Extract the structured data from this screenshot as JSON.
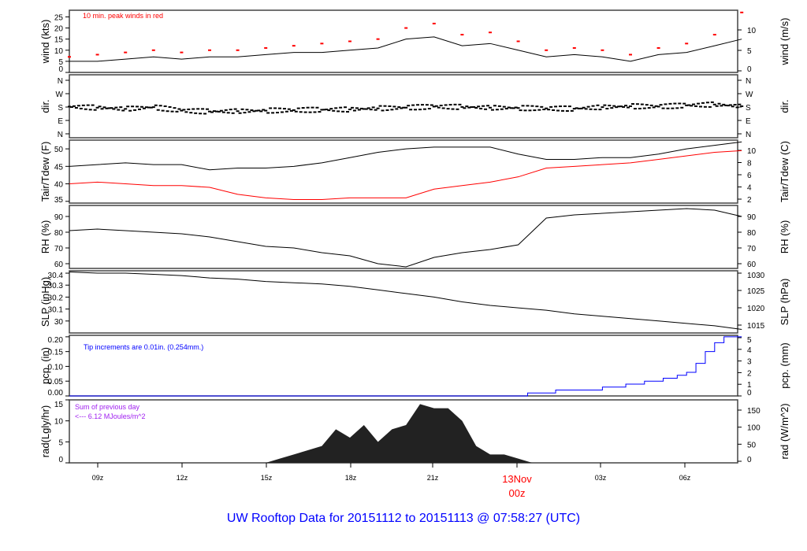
{
  "title": "UW Rooftop Data for 20151112  to  20151113 @ 07:58:27  (UTC)",
  "x_ticks": [
    "09z",
    "12z",
    "15z",
    "18z",
    "21z",
    "03z",
    "06z"
  ],
  "midnight_label": [
    "13Nov",
    "00z"
  ],
  "colors": {
    "line": "#000000",
    "peak": "#ff0000",
    "dew": "#ff0000",
    "pcp": "#0000ff",
    "rad": "#222222",
    "title": "#0000ff",
    "rad_note": "#a020f0"
  },
  "chart_data": [
    {
      "type": "line",
      "id": "wind",
      "ylabel": "wind (kts)",
      "ylabel_right": "wind (m/s)",
      "ylim": [
        0,
        28
      ],
      "yticks": [
        0,
        5,
        10,
        15,
        20,
        25
      ],
      "yticks_right": [
        0,
        5,
        10
      ],
      "annotation": "10 min. peak winds in red",
      "x": [
        "11-12 08:00",
        "11-12 09:00",
        "11-12 10:00",
        "11-12 11:00",
        "11-12 12:00",
        "11-12 13:00",
        "11-12 14:00",
        "11-12 15:00",
        "11-12 16:00",
        "11-12 17:00",
        "11-12 18:00",
        "11-12 19:00",
        "11-12 20:00",
        "11-12 21:00",
        "11-12 22:00",
        "11-12 23:00",
        "11-13 00:00",
        "11-13 01:00",
        "11-13 02:00",
        "11-13 03:00",
        "11-13 04:00",
        "11-13 05:00",
        "11-13 06:00",
        "11-13 07:00",
        "11-13 07:58"
      ],
      "series": [
        {
          "values": [
            5,
            5,
            6,
            7,
            6,
            7,
            7,
            8,
            9,
            9,
            10,
            11,
            15,
            16,
            12,
            13,
            10,
            7,
            8,
            7,
            5,
            8,
            9,
            12,
            15
          ]
        },
        {
          "name": "10 min. peak winds",
          "values": [
            7,
            8,
            9,
            10,
            9,
            10,
            10,
            11,
            12,
            13,
            14,
            15,
            20,
            22,
            17,
            18,
            14,
            10,
            11,
            10,
            8,
            11,
            13,
            17,
            27
          ]
        }
      ]
    },
    {
      "type": "scatter",
      "id": "dir",
      "ylabel": "dir.",
      "ylabel_right": "dir.",
      "ylim": [
        0,
        360
      ],
      "yticks": [
        "N",
        "E",
        "S",
        "W",
        "N"
      ],
      "x": [
        "11-12 08:00",
        "11-12 09:00",
        "11-12 10:00",
        "11-12 11:00",
        "11-12 12:00",
        "11-12 13:00",
        "11-12 14:00",
        "11-12 15:00",
        "11-12 16:00",
        "11-12 17:00",
        "11-12 18:00",
        "11-12 19:00",
        "11-12 20:00",
        "11-12 21:00",
        "11-12 22:00",
        "11-12 23:00",
        "11-13 00:00",
        "11-13 01:00",
        "11-13 02:00",
        "11-13 03:00",
        "11-13 04:00",
        "11-13 05:00",
        "11-13 06:00",
        "11-13 07:00",
        "11-13 07:58"
      ],
      "series": [
        {
          "values": [
            178,
            172,
            165,
            175,
            155,
            150,
            152,
            155,
            158,
            160,
            162,
            168,
            172,
            178,
            176,
            172,
            170,
            168,
            166,
            175,
            180,
            178,
            185,
            190,
            180
          ]
        }
      ]
    },
    {
      "type": "line",
      "id": "temp",
      "ylabel": "Tair/Tdew (F)",
      "ylabel_right": "Tair/Tdew (C)",
      "ylim": [
        34.5,
        52.5
      ],
      "yticks": [
        35,
        40,
        45,
        50
      ],
      "yticks_right": [
        2,
        4,
        6,
        8,
        10
      ],
      "x": [
        "11-12 08:00",
        "11-12 09:00",
        "11-12 10:00",
        "11-12 11:00",
        "11-12 12:00",
        "11-12 13:00",
        "11-12 14:00",
        "11-12 15:00",
        "11-12 16:00",
        "11-12 17:00",
        "11-12 18:00",
        "11-12 19:00",
        "11-12 20:00",
        "11-12 21:00",
        "11-12 22:00",
        "11-12 23:00",
        "11-13 00:00",
        "11-13 01:00",
        "11-13 02:00",
        "11-13 03:00",
        "11-13 04:00",
        "11-13 05:00",
        "11-13 06:00",
        "11-13 07:00",
        "11-13 07:58"
      ],
      "series": [
        {
          "name": "Tair",
          "values": [
            45,
            45.5,
            46,
            45.5,
            45.5,
            44,
            44.5,
            44.5,
            45,
            46,
            47.5,
            49,
            50,
            50.5,
            50.5,
            50.5,
            48.5,
            47,
            47,
            47.5,
            47.5,
            48.5,
            50,
            51,
            52
          ]
        },
        {
          "name": "Tdew",
          "values": [
            40,
            40.5,
            40,
            39.5,
            39.5,
            39,
            37,
            36,
            35.5,
            35.5,
            36,
            36,
            36,
            38.5,
            39.5,
            40.5,
            42,
            44.5,
            45,
            45.5,
            46,
            47,
            48,
            49,
            49.5
          ]
        }
      ]
    },
    {
      "type": "line",
      "id": "rh",
      "ylabel": "RH (%)",
      "ylabel_right": "RH (%)",
      "ylim": [
        57,
        97
      ],
      "yticks": [
        60,
        70,
        80,
        90
      ],
      "yticks_right": [
        60,
        70,
        80,
        90
      ],
      "x": [
        "11-12 08:00",
        "11-12 09:00",
        "11-12 10:00",
        "11-12 11:00",
        "11-12 12:00",
        "11-12 13:00",
        "11-12 14:00",
        "11-12 15:00",
        "11-12 16:00",
        "11-12 17:00",
        "11-12 18:00",
        "11-12 19:00",
        "11-12 20:00",
        "11-12 21:00",
        "11-12 22:00",
        "11-12 23:00",
        "11-13 00:00",
        "11-13 01:00",
        "11-13 02:00",
        "11-13 03:00",
        "11-13 04:00",
        "11-13 05:00",
        "11-13 06:00",
        "11-13 07:00",
        "11-13 07:58"
      ],
      "series": [
        {
          "values": [
            81,
            82,
            81,
            80,
            79,
            77,
            74,
            71,
            70,
            67,
            65,
            60,
            58,
            64,
            67,
            69,
            72,
            89,
            91,
            92,
            93,
            94,
            95,
            94,
            90
          ]
        }
      ]
    },
    {
      "type": "line",
      "id": "slp",
      "ylabel": "SLP (inHg)",
      "ylabel_right": "SLP (hPa)",
      "ylim": [
        29.9,
        30.42
      ],
      "yticks": [
        30.0,
        30.1,
        30.2,
        30.3,
        30.4
      ],
      "yticks_right": [
        1015,
        1020,
        1025,
        1030
      ],
      "x": [
        "11-12 08:00",
        "11-12 09:00",
        "11-12 10:00",
        "11-12 11:00",
        "11-12 12:00",
        "11-12 13:00",
        "11-12 14:00",
        "11-12 15:00",
        "11-12 16:00",
        "11-12 17:00",
        "11-12 18:00",
        "11-12 19:00",
        "11-12 20:00",
        "11-12 21:00",
        "11-12 22:00",
        "11-12 23:00",
        "11-13 00:00",
        "11-13 01:00",
        "11-13 02:00",
        "11-13 03:00",
        "11-13 04:00",
        "11-13 05:00",
        "11-13 06:00",
        "11-13 07:00",
        "11-13 07:58"
      ],
      "series": [
        {
          "values": [
            30.41,
            30.4,
            30.4,
            30.39,
            30.38,
            30.36,
            30.35,
            30.33,
            30.32,
            30.31,
            30.29,
            30.26,
            30.23,
            30.2,
            30.16,
            30.13,
            30.11,
            30.09,
            30.06,
            30.04,
            30.02,
            30.0,
            29.98,
            29.96,
            29.93
          ]
        }
      ]
    },
    {
      "type": "line",
      "id": "pcp",
      "ylabel": "pcp. (in)",
      "ylabel_right": "pcp. (mm)",
      "ylim": [
        0,
        0.205
      ],
      "yticks": [
        "0.00",
        "0.05",
        "0.10",
        "0.15",
        "0.20"
      ],
      "yticks_right": [
        0,
        1,
        2,
        3,
        4,
        5
      ],
      "annotation": "Tip increments are 0.01in. (0.254mm.)",
      "x": [
        "11-12 08:00",
        "11-13 00:20",
        "11-13 01:20",
        "11-13 03:00",
        "11-13 03:50",
        "11-13 04:30",
        "11-13 05:10",
        "11-13 05:40",
        "11-13 06:00",
        "11-13 06:20",
        "11-13 06:40",
        "11-13 07:00",
        "11-13 07:20",
        "11-13 07:58"
      ],
      "series": [
        {
          "values": [
            0,
            0.01,
            0.02,
            0.03,
            0.04,
            0.05,
            0.06,
            0.07,
            0.08,
            0.11,
            0.15,
            0.18,
            0.2,
            0.2
          ]
        }
      ]
    },
    {
      "type": "area",
      "id": "rad",
      "ylabel": "rad(Lgly/hr)",
      "ylabel_right": "rad (W/m^2)",
      "ylim": [
        0,
        15
      ],
      "yticks": [
        0,
        5,
        10,
        15
      ],
      "yticks_right": [
        0,
        50,
        100,
        150
      ],
      "annotation": [
        "Sum of previous day",
        "<--- 6.12 MJoules/m^2"
      ],
      "x": [
        "11-12 08:00",
        "11-12 15:00",
        "11-12 15:30",
        "11-12 16:00",
        "11-12 16:30",
        "11-12 17:00",
        "11-12 17:30",
        "11-12 18:00",
        "11-12 18:30",
        "11-12 19:00",
        "11-12 19:30",
        "11-12 20:00",
        "11-12 20:30",
        "11-12 21:00",
        "11-12 21:30",
        "11-12 22:00",
        "11-12 22:30",
        "11-12 23:00",
        "11-12 23:30",
        "11-13 00:00",
        "11-13 00:30",
        "11-13 07:58"
      ],
      "series": [
        {
          "values": [
            0,
            0,
            1,
            2,
            3,
            4,
            8,
            6,
            9,
            5,
            8,
            9,
            14,
            13,
            13,
            10,
            4,
            2,
            2,
            1,
            0,
            0
          ]
        }
      ]
    }
  ]
}
